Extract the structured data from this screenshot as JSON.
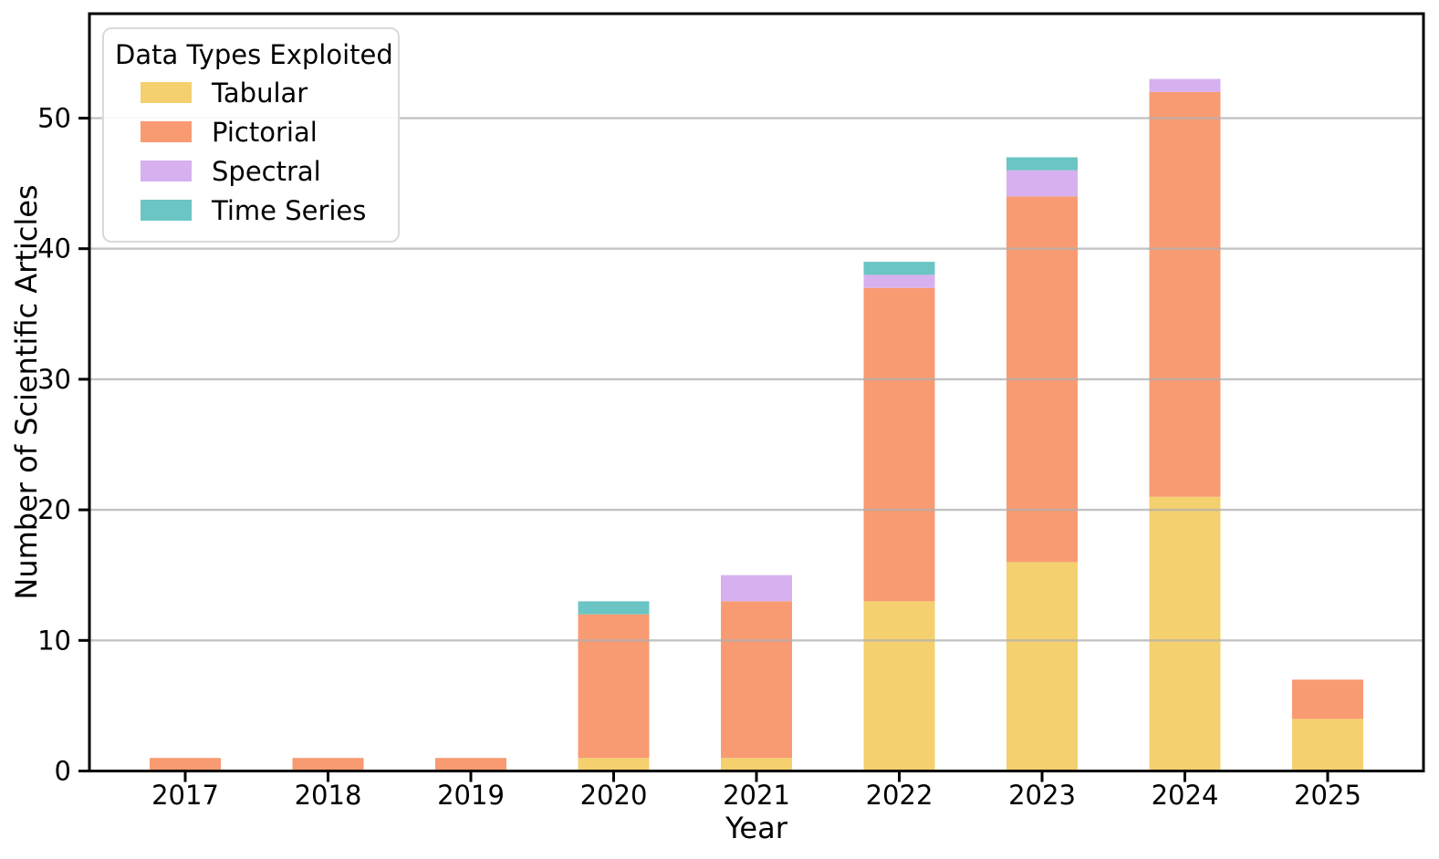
{
  "figure": {
    "background": "#ffffff"
  },
  "chart_data": {
    "type": "bar",
    "stacked": true,
    "title": "",
    "xlabel": "Year",
    "ylabel": "Number of Scientific Articles",
    "categories": [
      "2017",
      "2018",
      "2019",
      "2020",
      "2021",
      "2022",
      "2023",
      "2024",
      "2025"
    ],
    "series": [
      {
        "name": "Tabular",
        "color": "#f4d06e",
        "values": [
          0,
          0,
          0,
          1,
          1,
          13,
          16,
          21,
          4
        ]
      },
      {
        "name": "Pictorial",
        "color": "#f89b72",
        "values": [
          1,
          1,
          1,
          11,
          12,
          24,
          28,
          31,
          3
        ]
      },
      {
        "name": "Spectral",
        "color": "#d7b0ef",
        "values": [
          0,
          0,
          0,
          0,
          2,
          1,
          2,
          1,
          0
        ]
      },
      {
        "name": "Time Series",
        "color": "#6ac5c4",
        "values": [
          0,
          0,
          0,
          1,
          0,
          1,
          1,
          0,
          0
        ]
      }
    ],
    "stack_totals": [
      1,
      1,
      1,
      13,
      15,
      39,
      47,
      53,
      7
    ],
    "yticks": [
      0,
      10,
      20,
      30,
      40,
      50
    ],
    "ylim": [
      0,
      58
    ],
    "grid": true,
    "grid_on_top": true,
    "grid_color": "#b0b0b0",
    "axis_color": "#000000",
    "legend": {
      "title": "Data Types Exploited",
      "position": "upper left"
    }
  }
}
